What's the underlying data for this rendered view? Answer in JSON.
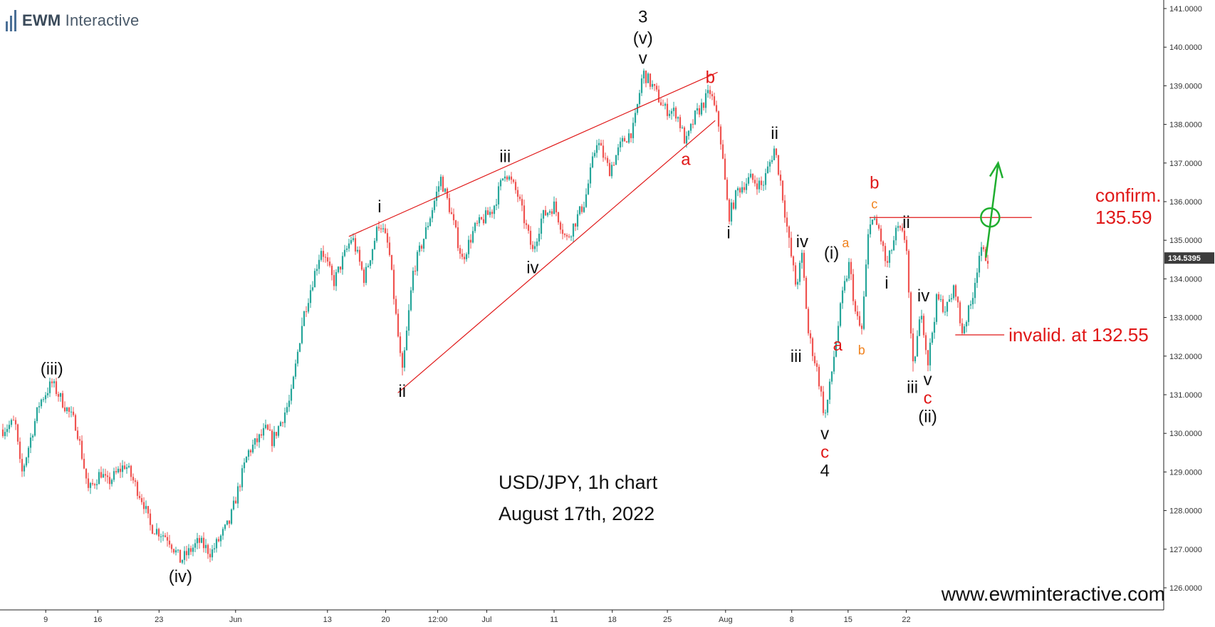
{
  "brand": {
    "name_bold": "EWM",
    "name_rest": " Interactive"
  },
  "caption": {
    "line1": "USD/JPY, 1h chart",
    "line2": "August 17th, 2022"
  },
  "website": "www.ewminteractive.com",
  "colors": {
    "up_candle": "#26a69a",
    "down_candle": "#ef5350",
    "annotation_red": "#e01818",
    "annotation_orange": "#f0821e",
    "annotation_black": "#111111",
    "target_green": "#1fae2f",
    "wedge_line": "#e01818",
    "axis_text": "#333333",
    "price_label_bg": "#3c3c3c"
  },
  "chart_data": {
    "type": "candlestick",
    "title": "USD/JPY, 1h chart",
    "subtitle": "August 17th, 2022",
    "ylim": [
      125.6,
      141.2
    ],
    "y_ticks": [
      "141.0000",
      "140.0000",
      "139.0000",
      "138.0000",
      "137.0000",
      "136.0000",
      "135.0000",
      "134.0000",
      "133.0000",
      "132.0000",
      "131.0000",
      "130.0000",
      "129.0000",
      "128.0000",
      "127.0000",
      "126.0000"
    ],
    "x_ticks": [
      "9",
      "16",
      "23",
      "Jun",
      "13",
      "20",
      "12:00",
      "Jul",
      "11",
      "18",
      "25",
      "Aug",
      "8",
      "15",
      "22"
    ],
    "last_price": "134.5395",
    "price_path": [
      {
        "t": 0,
        "p": 130.1
      },
      {
        "t": 2,
        "p": 130.3
      },
      {
        "t": 3,
        "p": 128.9
      },
      {
        "t": 6,
        "p": 130.8
      },
      {
        "t": 8,
        "p": 131.3
      },
      {
        "t": 12,
        "p": 130.2
      },
      {
        "t": 14,
        "p": 128.5
      },
      {
        "t": 16,
        "p": 129.0
      },
      {
        "t": 17,
        "p": 128.7
      },
      {
        "t": 20,
        "p": 129.2
      },
      {
        "t": 23,
        "p": 128.2
      },
      {
        "t": 24,
        "p": 127.6
      },
      {
        "t": 27,
        "p": 127.3
      },
      {
        "t": 29,
        "p": 126.7
      },
      {
        "t": 32,
        "p": 127.2
      },
      {
        "t": 34,
        "p": 126.9
      },
      {
        "t": 37,
        "p": 127.7
      },
      {
        "t": 40,
        "p": 129.5
      },
      {
        "t": 43,
        "p": 130.1
      },
      {
        "t": 44,
        "p": 129.8
      },
      {
        "t": 47,
        "p": 130.9
      },
      {
        "t": 49,
        "p": 133.0
      },
      {
        "t": 52,
        "p": 134.8
      },
      {
        "t": 54,
        "p": 133.9
      },
      {
        "t": 57,
        "p": 135.1
      },
      {
        "t": 59,
        "p": 134.0
      },
      {
        "t": 61.5,
        "p": 135.5
      },
      {
        "t": 63,
        "p": 134.8
      },
      {
        "t": 65.2,
        "p": 131.5
      },
      {
        "t": 67,
        "p": 134.2
      },
      {
        "t": 69,
        "p": 135.2
      },
      {
        "t": 71.5,
        "p": 136.6
      },
      {
        "t": 73,
        "p": 135.8
      },
      {
        "t": 75,
        "p": 134.5
      },
      {
        "t": 77,
        "p": 135.3
      },
      {
        "t": 80,
        "p": 135.8
      },
      {
        "t": 82,
        "p": 136.8
      },
      {
        "t": 84,
        "p": 136.2
      },
      {
        "t": 86.5,
        "p": 134.7
      },
      {
        "t": 88,
        "p": 135.6
      },
      {
        "t": 90,
        "p": 135.9
      },
      {
        "t": 92,
        "p": 135.0
      },
      {
        "t": 95,
        "p": 136.0
      },
      {
        "t": 97,
        "p": 137.6
      },
      {
        "t": 99,
        "p": 136.8
      },
      {
        "t": 101,
        "p": 137.5
      },
      {
        "t": 103,
        "p": 137.9
      },
      {
        "t": 104.5,
        "p": 139.35
      },
      {
        "t": 106,
        "p": 139.0
      },
      {
        "t": 108,
        "p": 138.4
      },
      {
        "t": 110,
        "p": 138.3
      },
      {
        "t": 111.5,
        "p": 137.5
      },
      {
        "t": 113,
        "p": 138.2
      },
      {
        "t": 115.5,
        "p": 138.85
      },
      {
        "t": 117,
        "p": 137.9
      },
      {
        "t": 118.5,
        "p": 135.6
      },
      {
        "t": 120,
        "p": 136.3
      },
      {
        "t": 122,
        "p": 136.6
      },
      {
        "t": 124,
        "p": 136.4
      },
      {
        "t": 126,
        "p": 137.4
      },
      {
        "t": 127,
        "p": 136.5
      },
      {
        "t": 128.5,
        "p": 134.8
      },
      {
        "t": 129.5,
        "p": 133.8
      },
      {
        "t": 130.5,
        "p": 134.6
      },
      {
        "t": 131.5,
        "p": 132.6
      },
      {
        "t": 133,
        "p": 131.6
      },
      {
        "t": 134.2,
        "p": 130.4
      },
      {
        "t": 135,
        "p": 131.2
      },
      {
        "t": 137,
        "p": 133.5
      },
      {
        "t": 138.2,
        "p": 134.4
      },
      {
        "t": 139.2,
        "p": 133.1
      },
      {
        "t": 140.2,
        "p": 132.6
      },
      {
        "t": 141.5,
        "p": 135.6
      },
      {
        "t": 143,
        "p": 135.3
      },
      {
        "t": 144.3,
        "p": 134.3
      },
      {
        "t": 146,
        "p": 135.3
      },
      {
        "t": 147.5,
        "p": 135.0
      },
      {
        "t": 148.5,
        "p": 131.6
      },
      {
        "t": 150,
        "p": 133.2
      },
      {
        "t": 151,
        "p": 131.8
      },
      {
        "t": 152.5,
        "p": 133.5
      },
      {
        "t": 154,
        "p": 133.2
      },
      {
        "t": 155.5,
        "p": 133.8
      },
      {
        "t": 156.5,
        "p": 132.6
      },
      {
        "t": 158,
        "p": 133.3
      },
      {
        "t": 159.5,
        "p": 134.7
      },
      {
        "t": 161,
        "p": 134.54
      }
    ],
    "wave_labels": [
      {
        "text": "(iii)",
        "t": 8,
        "p": 131.3,
        "pos": "above",
        "color": "black"
      },
      {
        "text": "(iv)",
        "t": 29,
        "p": 126.7,
        "pos": "below",
        "color": "black"
      },
      {
        "text": "i",
        "t": 61.5,
        "p": 135.5,
        "pos": "above",
        "color": "black"
      },
      {
        "text": "ii",
        "t": 65.2,
        "p": 131.5,
        "pos": "below",
        "color": "black"
      },
      {
        "text": "iii",
        "t": 82,
        "p": 136.8,
        "pos": "above",
        "color": "black"
      },
      {
        "text": "iv",
        "t": 86.5,
        "p": 134.7,
        "pos": "below",
        "color": "black"
      },
      {
        "text": "v",
        "t": 104.5,
        "p": 139.35,
        "pos": "above",
        "color": "black"
      },
      {
        "text": "(v)",
        "t": 104.5,
        "p": 139.35,
        "pos": "above2",
        "color": "black"
      },
      {
        "text": "3",
        "t": 104.5,
        "p": 139.35,
        "pos": "above3",
        "color": "black"
      },
      {
        "text": "a",
        "t": 111.5,
        "p": 137.5,
        "pos": "below",
        "color": "red"
      },
      {
        "text": "b",
        "t": 115.5,
        "p": 138.85,
        "pos": "above",
        "color": "red"
      },
      {
        "text": "i",
        "t": 118.5,
        "p": 135.6,
        "pos": "below",
        "color": "black"
      },
      {
        "text": "ii",
        "t": 126,
        "p": 137.4,
        "pos": "above",
        "color": "black"
      },
      {
        "text": "iv",
        "t": 130.5,
        "p": 134.6,
        "pos": "above",
        "color": "black"
      },
      {
        "text": "iii",
        "t": 129.5,
        "p": 132.4,
        "pos": "below",
        "color": "black"
      },
      {
        "text": "v",
        "t": 134.2,
        "p": 130.4,
        "pos": "below",
        "color": "black"
      },
      {
        "text": "c",
        "t": 134.2,
        "p": 130.4,
        "pos": "below2",
        "color": "red"
      },
      {
        "text": "4",
        "t": 134.2,
        "p": 130.4,
        "pos": "below3",
        "color": "black"
      },
      {
        "text": "a",
        "t": 136.3,
        "p": 132.7,
        "pos": "below",
        "color": "red"
      },
      {
        "text": "(i)",
        "t": 135.3,
        "p": 134.3,
        "pos": "above",
        "color": "black"
      },
      {
        "text": "a",
        "t": 137.6,
        "p": 134.6,
        "pos": "above",
        "color": "orange"
      },
      {
        "text": "b",
        "t": 140.2,
        "p": 132.6,
        "pos": "below",
        "color": "orange"
      },
      {
        "text": "c",
        "t": 142.3,
        "p": 135.6,
        "pos": "above",
        "color": "orange"
      },
      {
        "text": "b",
        "t": 142.3,
        "p": 135.6,
        "pos": "above2",
        "color": "red"
      },
      {
        "text": "ii",
        "t": 147.5,
        "p": 135.1,
        "pos": "above",
        "color": "black"
      },
      {
        "text": "i",
        "t": 144.3,
        "p": 134.3,
        "pos": "below",
        "color": "black"
      },
      {
        "text": "iii",
        "t": 148.5,
        "p": 131.6,
        "pos": "below",
        "color": "black"
      },
      {
        "text": "iv",
        "t": 150.3,
        "p": 133.2,
        "pos": "above",
        "color": "black"
      },
      {
        "text": "v",
        "t": 151,
        "p": 131.8,
        "pos": "below",
        "color": "black"
      },
      {
        "text": "c",
        "t": 151,
        "p": 131.8,
        "pos": "below2",
        "color": "red"
      },
      {
        "text": "(ii)",
        "t": 151,
        "p": 131.8,
        "pos": "below3",
        "color": "black"
      }
    ],
    "trendlines": [
      {
        "name": "upper wedge",
        "t1": 56.5,
        "p1": 135.1,
        "t2": 116.7,
        "p2": 139.35
      },
      {
        "name": "lower wedge",
        "t1": 64.5,
        "p1": 131.05,
        "t2": 116.3,
        "p2": 138.1
      }
    ],
    "levels": [
      {
        "name": "confirmation",
        "t1": 141.5,
        "t2": 168,
        "p": 135.59,
        "text_line1": "confirm.",
        "text_line2": "135.59"
      },
      {
        "name": "invalidation",
        "t1": 155.5,
        "t2": 163.5,
        "p": 132.55,
        "text": "invalid. at 132.55"
      }
    ],
    "projection": {
      "t1": 160.5,
      "p1": 134.55,
      "t2": 162.5,
      "p2": 137.0
    },
    "target_circle": {
      "t": 161.2,
      "p": 135.59
    }
  }
}
